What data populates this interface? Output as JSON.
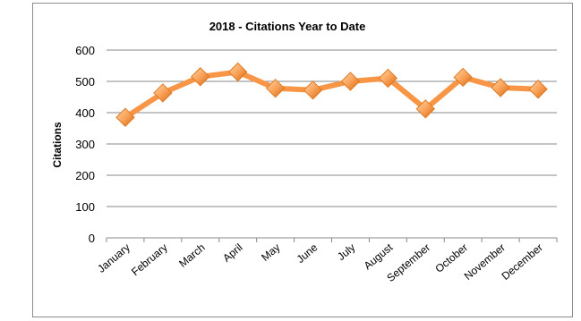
{
  "chart_data": {
    "type": "line",
    "title": "2018 - Citations Year to Date",
    "xlabel": "",
    "ylabel": "Citations",
    "categories": [
      "January",
      "February",
      "March",
      "April",
      "May",
      "June",
      "July",
      "August",
      "September",
      "October",
      "November",
      "December"
    ],
    "series": [
      {
        "values": [
          385,
          463,
          515,
          530,
          478,
          472,
          500,
          510,
          412,
          513,
          480,
          475
        ]
      }
    ],
    "ylim": [
      0,
      600
    ],
    "yticks": [
      "0",
      "100",
      "200",
      "300",
      "400",
      "500",
      "600"
    ],
    "grid": true,
    "legend": "none",
    "colors": {
      "line": "#F79646",
      "marker_light": "#FFC98E",
      "marker_dark": "#E46C0A",
      "grid": "#888888"
    }
  }
}
